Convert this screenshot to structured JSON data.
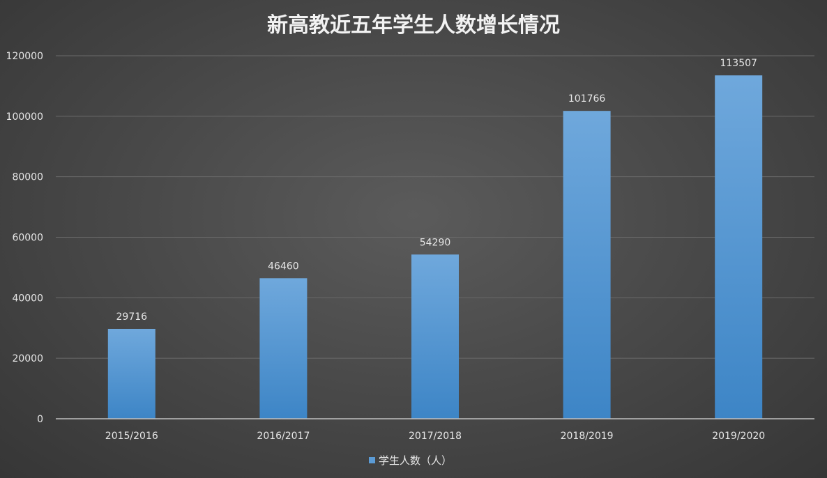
{
  "chart_data": {
    "type": "bar",
    "title": "新高教近五年学生人数增长情况",
    "categories": [
      "2015/2016",
      "2016/2017",
      "2017/2018",
      "2018/2019",
      "2019/2020"
    ],
    "series": [
      {
        "name": "学生人数（人）",
        "values": [
          29716,
          46460,
          54290,
          101766,
          113507
        ]
      }
    ],
    "ylim": [
      0,
      120000
    ],
    "yticks": [
      0,
      20000,
      40000,
      60000,
      80000,
      100000,
      120000
    ],
    "grid": true,
    "legend": "bottom",
    "data_labels": true
  },
  "colors": {
    "bar_top": "#6fa8dc",
    "bar_bottom": "#3d85c6",
    "legend_marker": "#5b9bd5",
    "grid": "#6a6a6a",
    "axis": "#bfbfbf"
  }
}
